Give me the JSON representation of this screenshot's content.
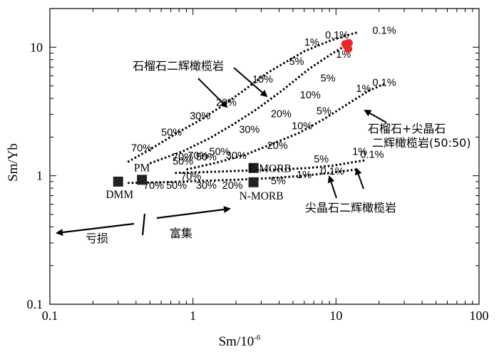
{
  "chart_data": {
    "type": "line",
    "x_scale": "log",
    "y_scale": "log",
    "xlabel": "Sm/10",
    "xlabel_sup": "-6",
    "ylabel": "Sm/Yb",
    "xlim": [
      0.1,
      100
    ],
    "ylim": [
      0.1,
      20
    ],
    "x_ticks": [
      "0.1",
      "1",
      "10",
      "100"
    ],
    "y_ticks": [
      "0.1",
      "1",
      "10"
    ],
    "series": [
      {
        "type": "melting-trend",
        "x": [
          0.35,
          0.5,
          0.8,
          1.15,
          1.6,
          2.2,
          3.3,
          6,
          9,
          12,
          14
        ],
        "y": [
          1.28,
          1.6,
          2.2,
          2.75,
          3.5,
          4.5,
          6.3,
          9.3,
          11.2,
          12.4,
          13.0
        ],
        "labels": [
          {
            "text": "70%",
            "x": 0.37,
            "y": 1.55
          },
          {
            "text": "50%",
            "x": 0.6,
            "y": 2.05
          },
          {
            "text": "30%",
            "x": 0.95,
            "y": 2.75
          },
          {
            "text": "20%",
            "x": 1.45,
            "y": 3.5
          },
          {
            "text": "10%",
            "x": 2.6,
            "y": 5.3
          },
          {
            "text": "5%",
            "x": 4.7,
            "y": 7.3
          },
          {
            "text": "1%",
            "x": 6.0,
            "y": 10.3
          },
          {
            "text": "0.1%",
            "x": 8.4,
            "y": 11.7
          },
          {
            "text": "0.1%",
            "x": 18.0,
            "y": 12.7
          }
        ]
      },
      {
        "type": "melting-trend",
        "x": [
          0.5,
          0.85,
          1.3,
          1.9,
          2.8,
          4.2,
          6.5,
          9.5,
          12
        ],
        "y": [
          1.25,
          1.55,
          1.95,
          2.5,
          3.3,
          4.6,
          6.8,
          9.0,
          10.5
        ],
        "labels": [
          {
            "text": "50%",
            "x": 0.72,
            "y": 1.22
          },
          {
            "text": "70%",
            "x": 0.92,
            "y": 1.35
          },
          {
            "text": "50%",
            "x": 1.3,
            "y": 1.45
          },
          {
            "text": "30%",
            "x": 2.1,
            "y": 2.15
          },
          {
            "text": "20%",
            "x": 3.5,
            "y": 2.85
          },
          {
            "text": "10%",
            "x": 5.6,
            "y": 4.0
          },
          {
            "text": "5%",
            "x": 7.8,
            "y": 5.4
          },
          {
            "text": "1%",
            "x": 10.0,
            "y": 8.3
          }
        ]
      },
      {
        "type": "melting-trend",
        "x": [
          0.9,
          1.4,
          2.3,
          3.5,
          5.5,
          8.2,
          12,
          17,
          22
        ],
        "y": [
          1.12,
          1.25,
          1.45,
          1.75,
          2.15,
          2.75,
          3.6,
          4.6,
          5.2
        ],
        "labels": [
          {
            "text": "70%",
            "x": 0.72,
            "y": 1.32
          },
          {
            "text": "50%",
            "x": 1.05,
            "y": 1.32
          },
          {
            "text": "30%",
            "x": 1.7,
            "y": 1.35
          },
          {
            "text": "20%",
            "x": 3.3,
            "y": 1.62
          },
          {
            "text": "10%",
            "x": 4.9,
            "y": 2.3
          },
          {
            "text": "5%",
            "x": 7.3,
            "y": 3.0
          },
          {
            "text": "1%",
            "x": 13.8,
            "y": 4.5
          },
          {
            "text": "0.1%",
            "x": 18.0,
            "y": 5.0
          }
        ]
      },
      {
        "type": "melting-trend",
        "x": [
          0.75,
          1.3,
          2.5,
          4.2,
          6.5,
          9.5,
          13,
          16
        ],
        "y": [
          1.05,
          1.07,
          1.1,
          1.12,
          1.15,
          1.2,
          1.27,
          1.32
        ],
        "labels": [
          {
            "text": "5%",
            "x": 7.0,
            "y": 1.27
          },
          {
            "text": "1%",
            "x": 13.0,
            "y": 1.45
          },
          {
            "text": "0.1%",
            "x": 14.8,
            "y": 1.38
          }
        ]
      },
      {
        "type": "melting-trend",
        "x": [
          0.35,
          0.6,
          1.1,
          2.0,
          3.6,
          6.0,
          9.5,
          14
        ],
        "y": [
          0.88,
          0.89,
          0.91,
          0.93,
          0.96,
          1.0,
          1.06,
          1.12
        ],
        "labels": [
          {
            "text": "70%",
            "x": 0.45,
            "y": 0.79
          },
          {
            "text": "50%",
            "x": 0.65,
            "y": 0.79
          },
          {
            "text": "70%",
            "x": 0.82,
            "y": 0.93
          },
          {
            "text": "30%",
            "x": 1.05,
            "y": 0.79
          },
          {
            "text": "20%",
            "x": 1.6,
            "y": 0.79
          },
          {
            "text": "5%",
            "x": 3.5,
            "y": 0.86
          },
          {
            "text": "1%",
            "x": 5.3,
            "y": 0.96
          },
          {
            "text": "0.1%",
            "x": 7.8,
            "y": 1.02
          }
        ]
      }
    ],
    "source_points": [
      {
        "label": "DMM",
        "x": 0.3,
        "y": 0.9
      },
      {
        "label": "PM",
        "x": 0.44,
        "y": 0.93
      },
      {
        "label": "E-MORB",
        "x": 2.65,
        "y": 1.15
      },
      {
        "label": "N-MORB",
        "x": 2.65,
        "y": 0.89
      }
    ],
    "samples": [
      {
        "x": 11.6,
        "y": 10.6
      },
      {
        "x": 12.0,
        "y": 10.2
      },
      {
        "x": 12.2,
        "y": 9.7
      },
      {
        "x": 11.8,
        "y": 10.3
      },
      {
        "x": 12.3,
        "y": 10.8
      }
    ],
    "annotations": {
      "garnet_lherzolite": "石榴石二辉橄榄岩",
      "garnet_spinel_line1": "石榴石+尖晶石",
      "garnet_spinel_line2": "二辉橄榄岩(50:50)",
      "spinel_lherzolite": "尖晶石二辉橄榄岩",
      "depleted": "亏损",
      "enriched": "富集"
    },
    "colors": {
      "samples": "#e8262b",
      "lines": "#000000"
    }
  }
}
